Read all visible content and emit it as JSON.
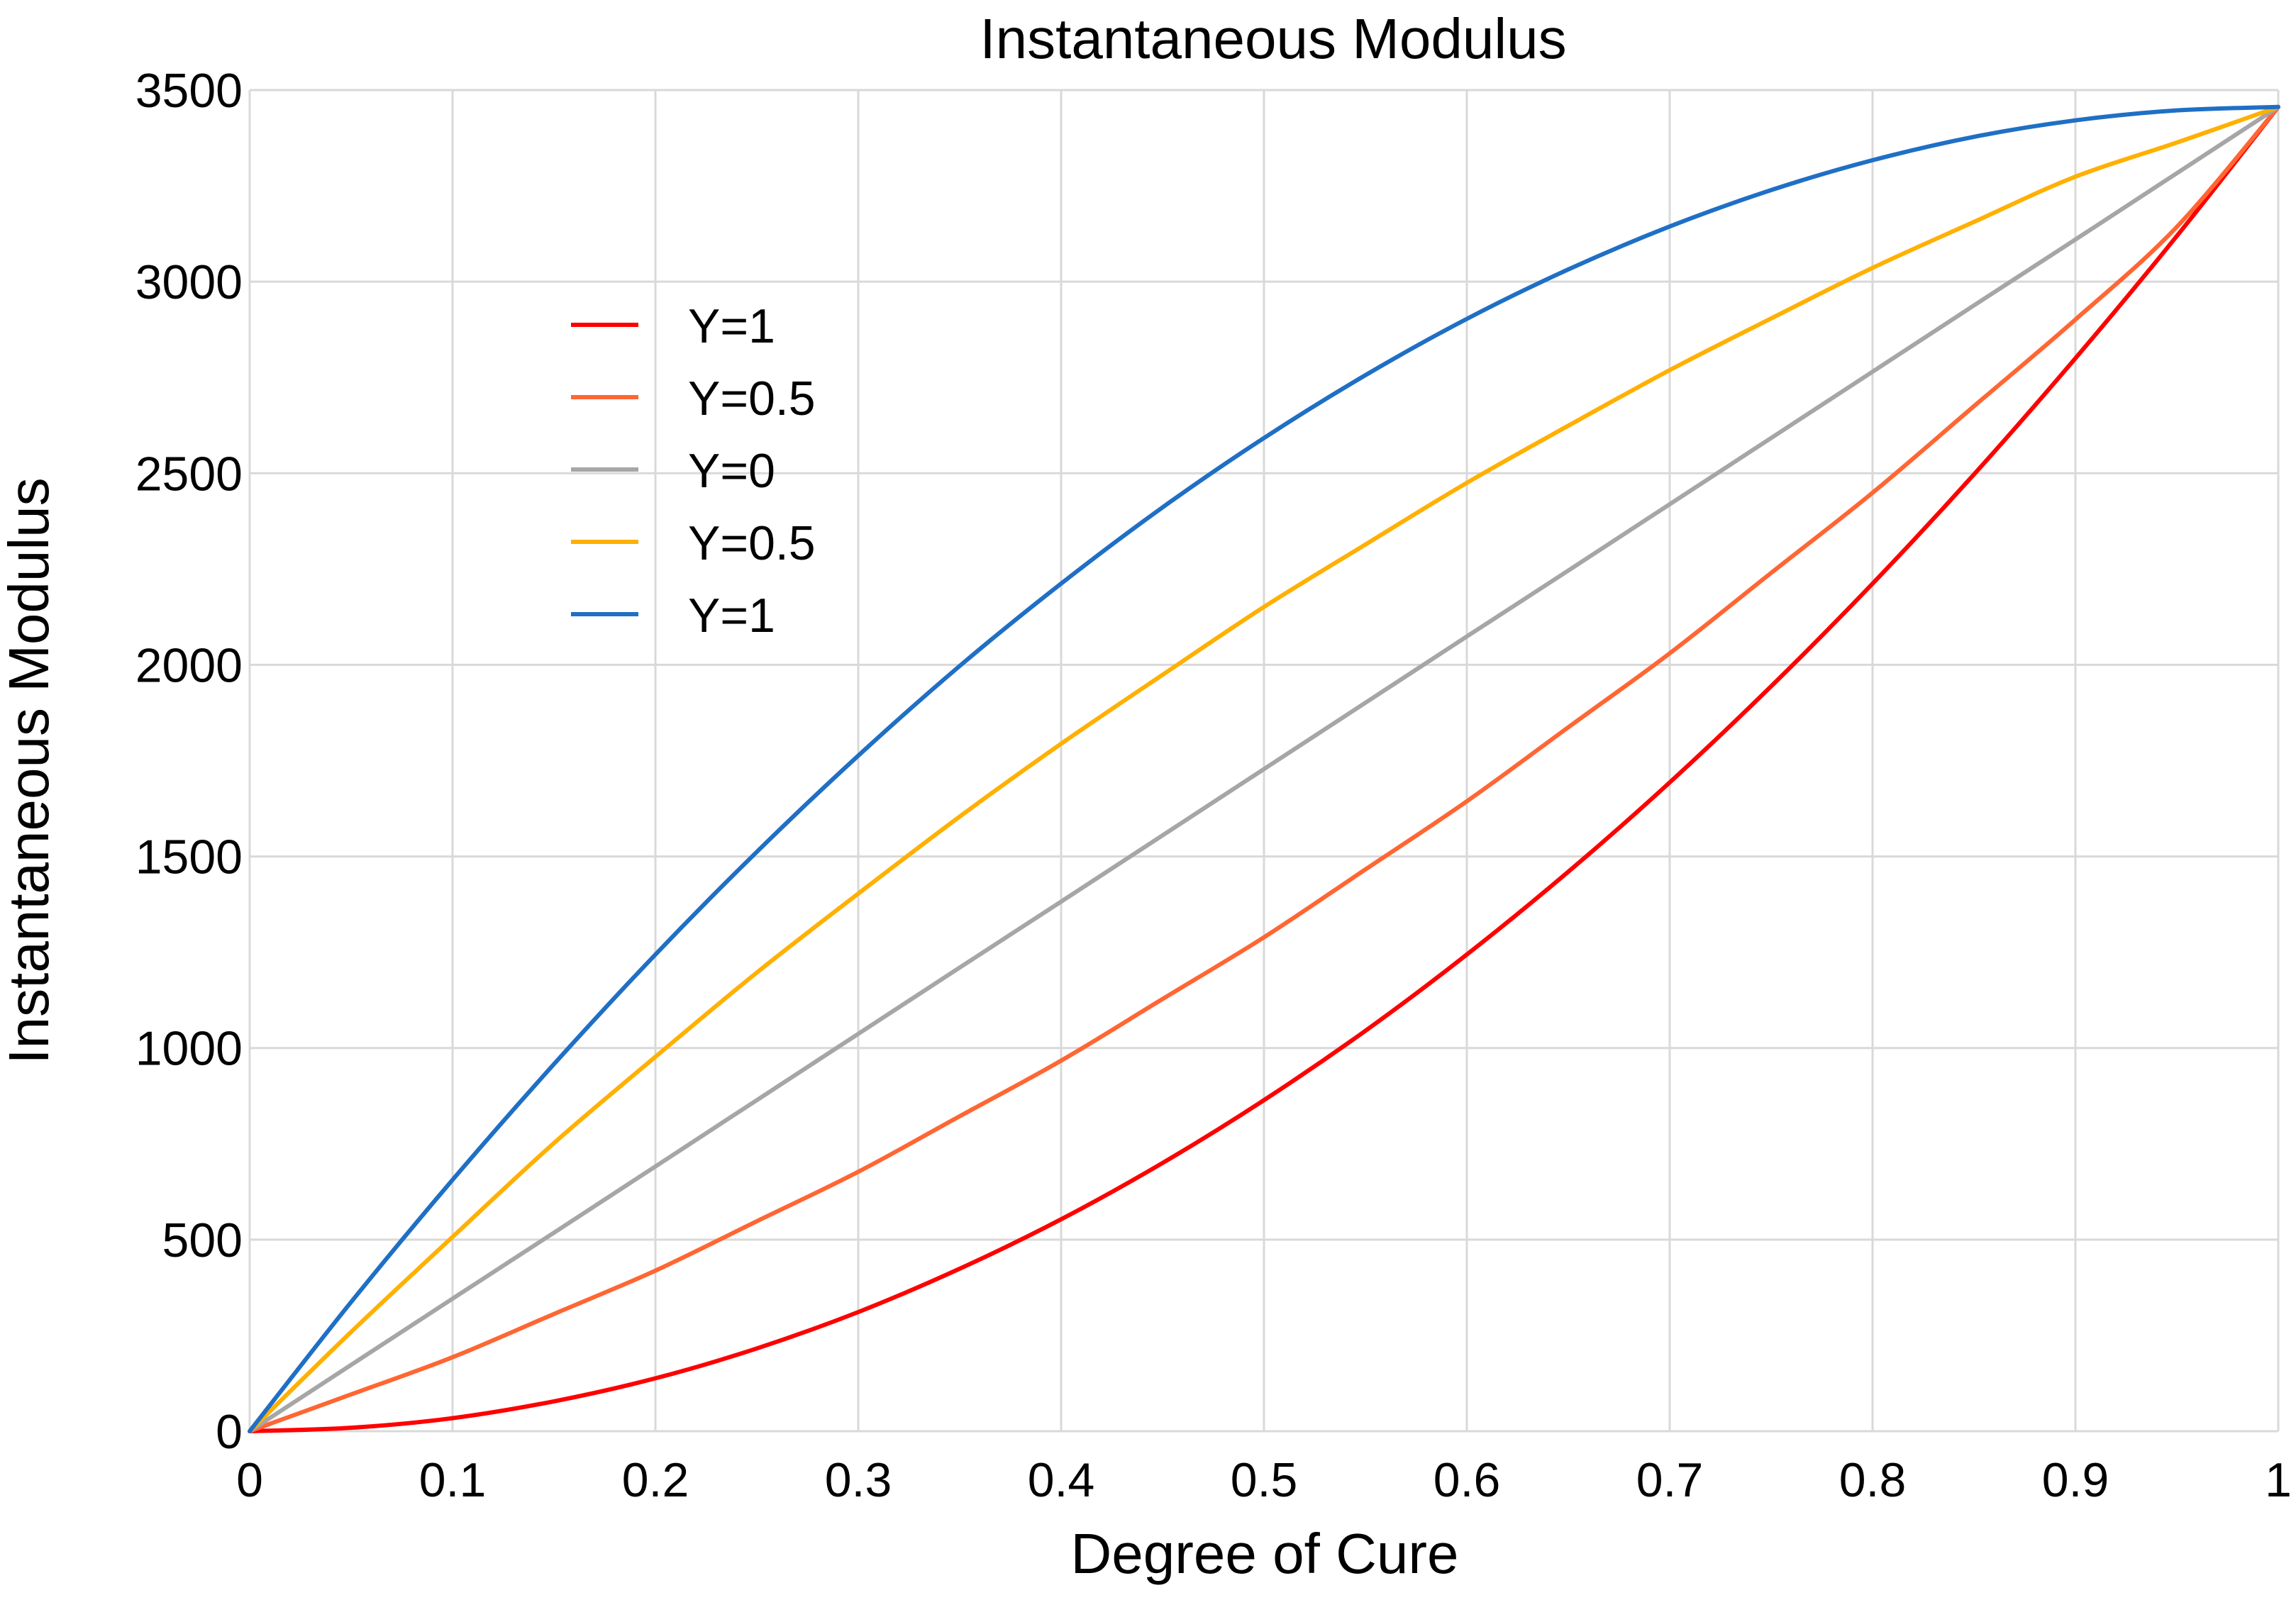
{
  "chart_data": {
    "type": "line",
    "title": "Instantaneous Modulus",
    "xlabel": "Degree of Cure",
    "ylabel": "Instantaneous Modulus",
    "xlim": [
      0,
      1
    ],
    "ylim": [
      0,
      3500
    ],
    "xticks": [
      0,
      0.1,
      0.2,
      0.3,
      0.4,
      0.5,
      0.6,
      0.7,
      0.8,
      0.9,
      1
    ],
    "xtick_labels": [
      "0",
      "0.1",
      "0.2",
      "0.3",
      "0.4",
      "0.5",
      "0.6",
      "0.7",
      "0.8",
      "0.9",
      "1"
    ],
    "yticks": [
      0,
      500,
      1000,
      1500,
      2000,
      2500,
      3000,
      3500
    ],
    "ytick_labels": [
      "0",
      "500",
      "1000",
      "1500",
      "2000",
      "2500",
      "3000",
      "3500"
    ],
    "grid": true,
    "legend_position": "upper-left",
    "x": [
      0,
      0.05,
      0.1,
      0.15,
      0.2,
      0.25,
      0.3,
      0.35,
      0.4,
      0.45,
      0.5,
      0.55,
      0.6,
      0.65,
      0.7,
      0.75,
      0.8,
      0.85,
      0.9,
      0.95,
      1
    ],
    "series": [
      {
        "name": "Y=1",
        "color": "#ff0000",
        "values": [
          0,
          9,
          34,
          78,
          138,
          216,
          311,
          424,
          553,
          700,
          864,
          1045,
          1244,
          1460,
          1693,
          1944,
          2212,
          2497,
          2800,
          3119,
          3456
        ]
      },
      {
        "name": "Y=0.5",
        "color": "#ff6633",
        "values": [
          0,
          96,
          193,
          306,
          419,
          548,
          677,
          822,
          967,
          1128,
          1289,
          1466,
          1644,
          1837,
          2030,
          2240,
          2449,
          2675,
          2901,
          3143,
          3456
        ]
      },
      {
        "name": "Y=0",
        "color": "#a6a6a6",
        "values": [
          0,
          173,
          346,
          518,
          691,
          864,
          1037,
          1210,
          1382,
          1555,
          1728,
          1901,
          2074,
          2246,
          2419,
          2592,
          2765,
          2938,
          3110,
          3283,
          3456
        ]
      },
      {
        "name": "Y=0.5",
        "color": "#ffb000",
        "values": [
          0,
          259,
          507,
          752,
          977,
          1197,
          1403,
          1604,
          1794,
          1974,
          2151,
          2314,
          2475,
          2624,
          2769,
          2904,
          3036,
          3156,
          3274,
          3363,
          3456
        ]
      },
      {
        "name": "Y=1",
        "color": "#1f6fc5",
        "values": [
          0,
          337,
          656,
          958,
          1244,
          1512,
          1763,
          1997,
          2212,
          2411,
          2592,
          2756,
          2903,
          3032,
          3144,
          3239,
          3317,
          3378,
          3421,
          3447,
          3456
        ]
      }
    ]
  }
}
